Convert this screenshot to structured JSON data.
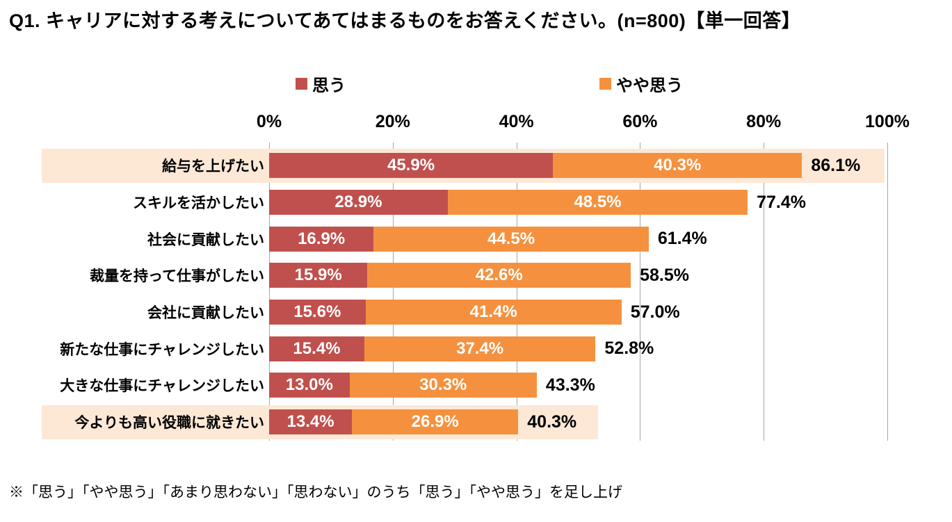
{
  "title": "Q1. キャリアに対する考えについてあてはまるものをお答えください。(n=800)【単一回答】",
  "footnote": "※「思う」「やや思う」「あまり思わない」「思わない」のうち「思う」「やや思う」を足し上げ",
  "legend": {
    "items": [
      {
        "label": "思う",
        "color": "#C0504D"
      },
      {
        "label": "やや思う",
        "color": "#F5913E"
      }
    ]
  },
  "axis_labels": [
    "0%",
    "20%",
    "40%",
    "60%",
    "80%",
    "100%"
  ],
  "colors": {
    "omou": "#C0504D",
    "yaya_omou": "#F5913E",
    "highlight_band": "#FDE8D6",
    "gridline": "#a6a6a6"
  },
  "chart_data": {
    "type": "bar",
    "orientation": "horizontal",
    "stacked": true,
    "title": "Q1. キャリアに対する考えについてあてはまるものをお答えください。(n=800)【単一回答】",
    "categories": [
      "給与を上げたい",
      "スキルを活かしたい",
      "社会に貢献したい",
      "裁量を持って仕事がしたい",
      "会社に貢献したい",
      "新たな仕事にチャレンジしたい",
      "大きな仕事にチャレンジしたい",
      "今よりも高い役職に就きたい"
    ],
    "series": [
      {
        "name": "思う",
        "color": "#C0504D",
        "values": [
          45.9,
          28.9,
          16.9,
          15.9,
          15.6,
          15.4,
          13.0,
          13.4
        ]
      },
      {
        "name": "やや思う",
        "color": "#F5913E",
        "values": [
          40.3,
          48.5,
          44.5,
          42.6,
          41.4,
          37.4,
          30.3,
          26.9
        ]
      }
    ],
    "totals": [
      86.1,
      77.4,
      61.4,
      58.5,
      57.0,
      52.8,
      43.3,
      40.3
    ],
    "highlighted_rows": [
      0,
      7
    ],
    "xlim": [
      0,
      100
    ],
    "x_ticks": [
      0,
      20,
      40,
      60,
      80,
      100
    ],
    "tick_format": "{v}%",
    "value_label_format": "{v}%",
    "grid": true,
    "legend_position": "top"
  }
}
